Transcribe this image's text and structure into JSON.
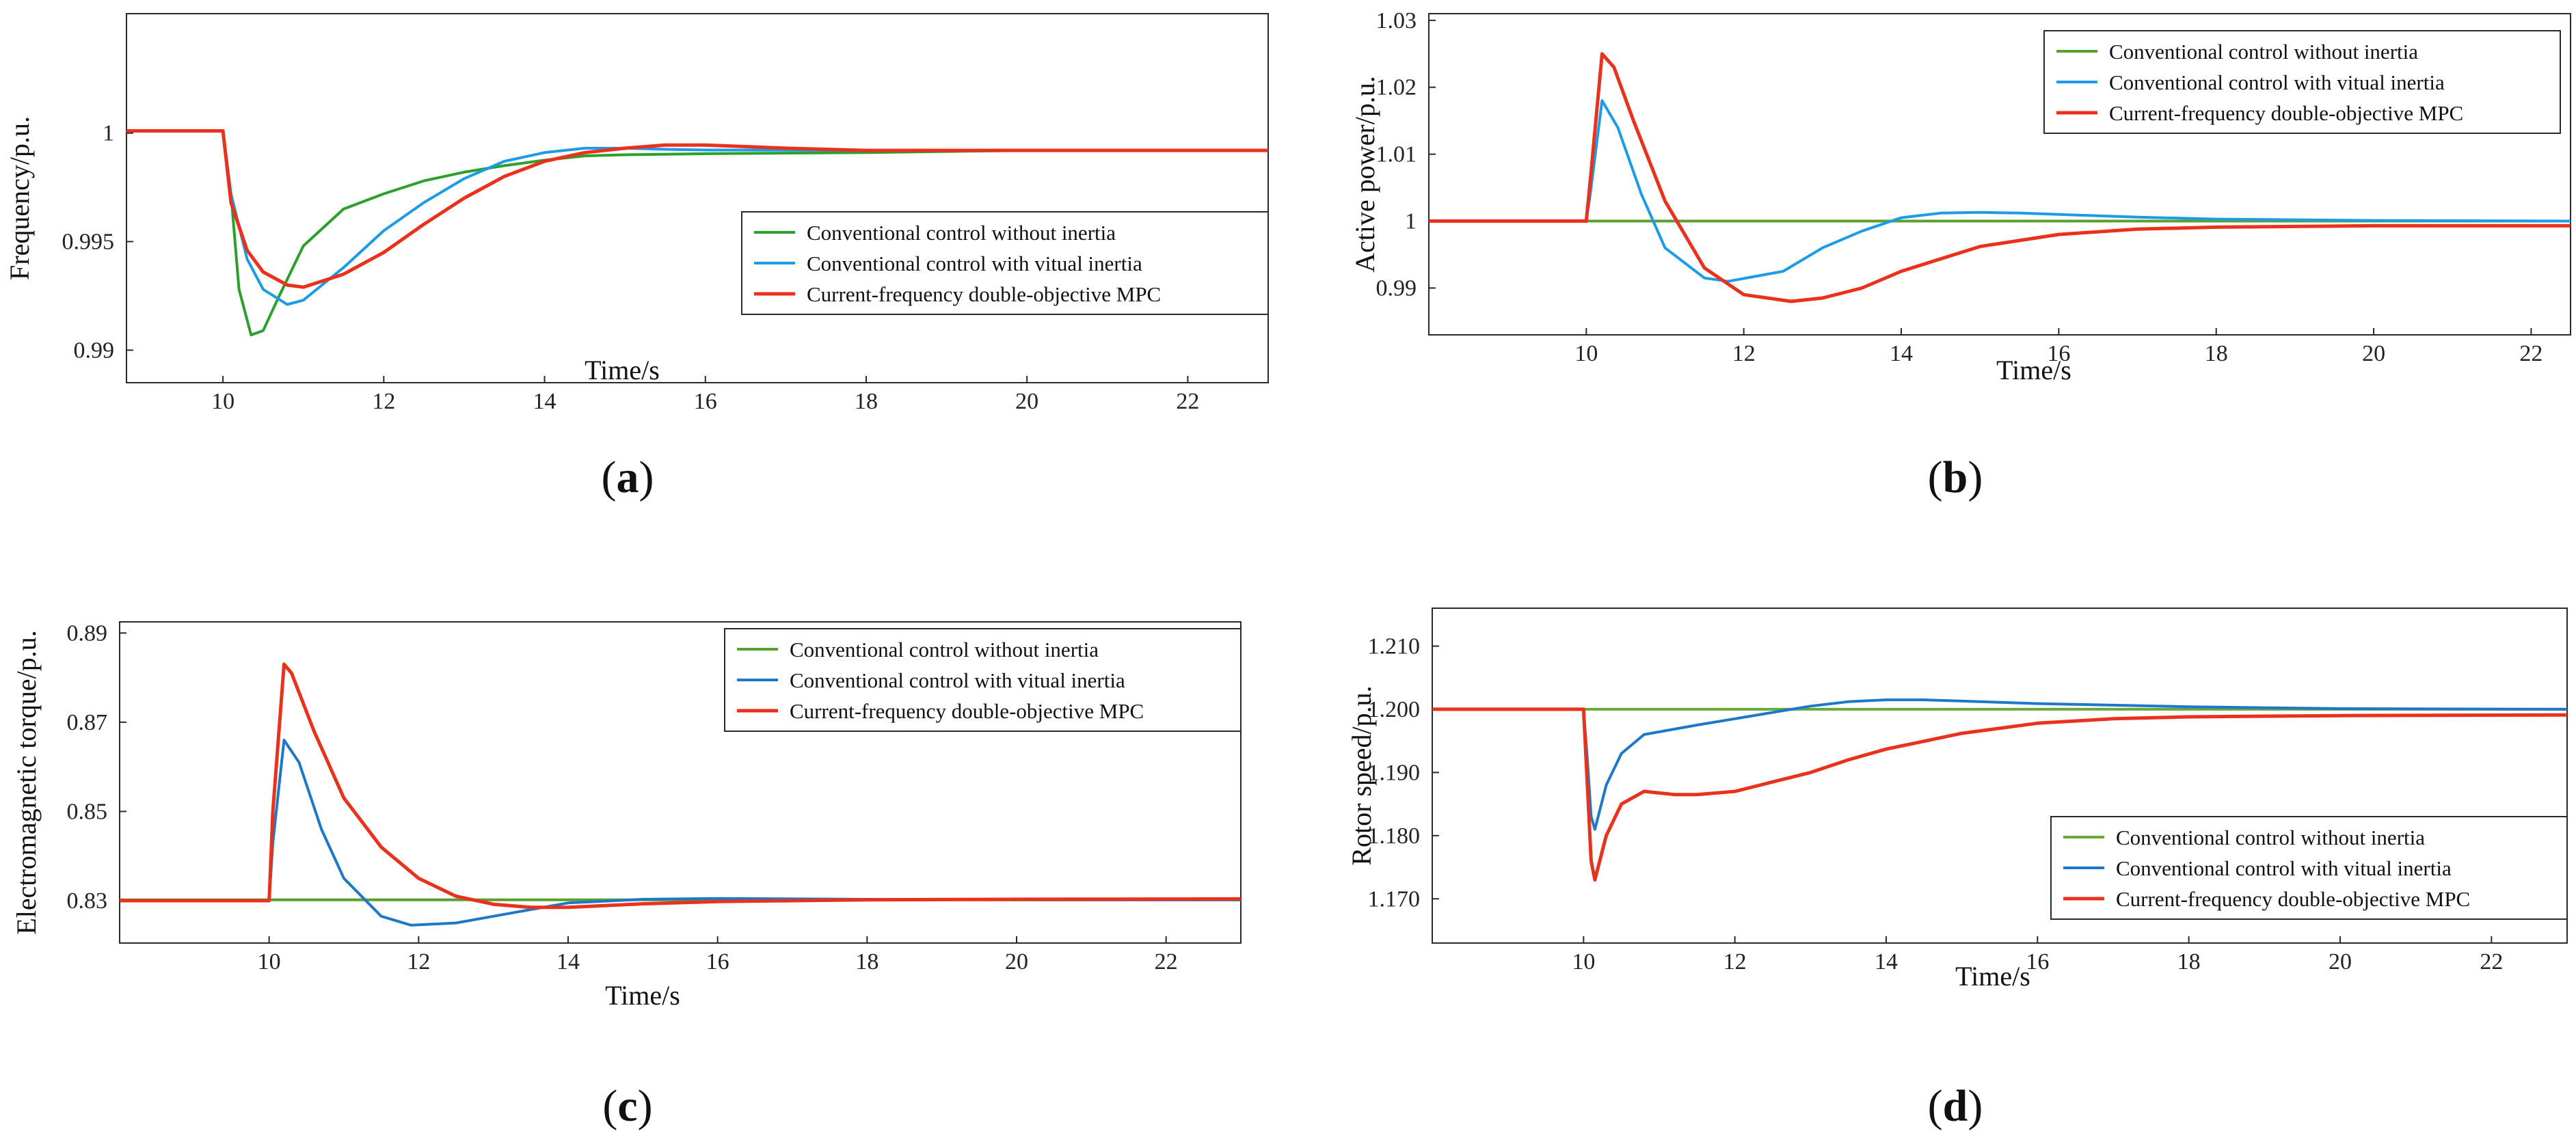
{
  "chart_data": [
    {
      "id": "a",
      "type": "line",
      "panel_label": "(a)",
      "panel_letter": "a",
      "xlabel": "Time/s",
      "ylabel": "Frequency/p.u.",
      "xlim": [
        8.8,
        23
      ],
      "ylim": [
        0.9885,
        1.0055
      ],
      "x_ticks": [
        10,
        12,
        14,
        16,
        18,
        20,
        22
      ],
      "x_tick_labels": [
        "10",
        "12",
        "14",
        "16",
        "18",
        "20",
        "22"
      ],
      "y_ticks": [
        0.99,
        0.995,
        1.0
      ],
      "y_tick_labels": [
        "0.99",
        "0.995",
        "1"
      ],
      "legend_position": "bottom-right",
      "series": [
        {
          "name": "Conventional control without inertia",
          "color": "#2ca02c",
          "x": [
            8.8,
            10.0,
            10.1,
            10.2,
            10.35,
            10.5,
            10.7,
            11.0,
            11.5,
            12.0,
            12.5,
            13.0,
            13.5,
            14.0,
            14.5,
            15.0,
            16.0,
            18.0,
            20.0,
            23.0
          ],
          "y": [
            1.0001,
            1.0001,
            0.9972,
            0.9928,
            0.9907,
            0.9909,
            0.9925,
            0.9948,
            0.9965,
            0.9972,
            0.9978,
            0.9982,
            0.9985,
            0.99875,
            0.99895,
            0.999,
            0.99905,
            0.9991,
            0.9992,
            0.9992
          ]
        },
        {
          "name": "Conventional control with vitual inertia",
          "color": "#1e9be6",
          "x": [
            8.8,
            10.0,
            10.1,
            10.3,
            10.5,
            10.8,
            11.0,
            11.5,
            12.0,
            12.5,
            13.0,
            13.5,
            14.0,
            14.5,
            15.0,
            15.5,
            16.0,
            18.0,
            20.0,
            23.0
          ],
          "y": [
            1.0001,
            1.0001,
            0.9972,
            0.9942,
            0.9928,
            0.9921,
            0.9923,
            0.9938,
            0.9955,
            0.9968,
            0.9979,
            0.9987,
            0.9991,
            0.9993,
            0.9993,
            0.99925,
            0.99922,
            0.9992,
            0.9992,
            0.9992
          ]
        },
        {
          "name": "Current-frequency double-objective MPC",
          "color": "#e8321e",
          "x": [
            8.8,
            10.0,
            10.1,
            10.3,
            10.5,
            10.8,
            11.0,
            11.5,
            12.0,
            12.5,
            13.0,
            13.5,
            14.0,
            14.5,
            15.0,
            15.5,
            16.0,
            17.0,
            18.0,
            20.0,
            23.0
          ],
          "y": [
            1.0001,
            1.0001,
            0.9968,
            0.9946,
            0.9936,
            0.993,
            0.9929,
            0.9935,
            0.9945,
            0.9958,
            0.997,
            0.998,
            0.9987,
            0.9991,
            0.9993,
            0.99945,
            0.99945,
            0.9993,
            0.9992,
            0.9992,
            0.9992
          ]
        }
      ]
    },
    {
      "id": "b",
      "type": "line",
      "panel_label": "(b)",
      "panel_letter": "b",
      "xlabel": "Time/s",
      "ylabel": "Active power/p.u.",
      "xlim": [
        8,
        22.5
      ],
      "ylim": [
        0.983,
        1.031
      ],
      "x_ticks": [
        10,
        12,
        14,
        16,
        18,
        20,
        22
      ],
      "x_tick_labels": [
        "10",
        "12",
        "14",
        "16",
        "18",
        "20",
        "22"
      ],
      "y_ticks": [
        0.99,
        1.0,
        1.01,
        1.02,
        1.03
      ],
      "y_tick_labels": [
        "0.99",
        "1",
        "1.01",
        "1.02",
        "1.03"
      ],
      "legend_position": "top-right",
      "series": [
        {
          "name": "Conventional control without inertia",
          "color": "#5aa02c",
          "x": [
            8,
            22.5
          ],
          "y": [
            1.0,
            1.0
          ]
        },
        {
          "name": "Conventional control with vitual inertia",
          "color": "#1e9be6",
          "x": [
            8,
            10.0,
            10.05,
            10.2,
            10.4,
            10.7,
            11.0,
            11.5,
            11.8,
            12.5,
            13.0,
            13.5,
            14.0,
            14.5,
            15.0,
            15.5,
            16.0,
            17.0,
            18.0,
            20.0,
            22.5
          ],
          "y": [
            1.0,
            1.0,
            1.004,
            1.018,
            1.014,
            1.004,
            0.996,
            0.9915,
            0.991,
            0.9925,
            0.996,
            0.9985,
            1.0005,
            1.0012,
            1.0013,
            1.0012,
            1.001,
            1.0006,
            1.0003,
            1.0001,
            1.0
          ]
        },
        {
          "name": "Current-frequency double-objective MPC",
          "color": "#e8321e",
          "x": [
            8,
            10.0,
            10.05,
            10.2,
            10.35,
            10.6,
            11.0,
            11.5,
            12.0,
            12.6,
            13.0,
            13.5,
            14.0,
            15.0,
            16.0,
            17.0,
            18.0,
            20.0,
            22.5
          ],
          "y": [
            1.0,
            1.0,
            1.006,
            1.025,
            1.023,
            1.015,
            1.003,
            0.993,
            0.989,
            0.988,
            0.9885,
            0.99,
            0.9925,
            0.9962,
            0.998,
            0.9988,
            0.9991,
            0.9993,
            0.9993
          ]
        }
      ]
    },
    {
      "id": "c",
      "type": "line",
      "panel_label": "(c)",
      "panel_letter": "c",
      "xlabel": "Time/s",
      "ylabel": "Electromagnetic torque/p.u.",
      "xlim": [
        8,
        23
      ],
      "ylim": [
        0.8205,
        0.8925
      ],
      "x_ticks": [
        10,
        12,
        14,
        16,
        18,
        20,
        22
      ],
      "x_tick_labels": [
        "10",
        "12",
        "14",
        "16",
        "18",
        "20",
        "22"
      ],
      "y_ticks": [
        0.83,
        0.85,
        0.87,
        0.89
      ],
      "y_tick_labels": [
        "0.83",
        "0.85",
        "0.87",
        "0.89"
      ],
      "legend_position": "top-right",
      "series": [
        {
          "name": "Conventional control without inertia",
          "color": "#5aa02c",
          "x": [
            8,
            23
          ],
          "y": [
            0.8302,
            0.8302
          ]
        },
        {
          "name": "Conventional control with vitual inertia",
          "color": "#1e78c8",
          "x": [
            8,
            10.0,
            10.05,
            10.2,
            10.4,
            10.7,
            11.0,
            11.5,
            11.9,
            12.5,
            13.0,
            13.5,
            14.0,
            15.0,
            16.0,
            18.0,
            20.0,
            23.0
          ],
          "y": [
            0.83,
            0.83,
            0.843,
            0.866,
            0.861,
            0.846,
            0.835,
            0.8265,
            0.8245,
            0.825,
            0.8265,
            0.828,
            0.8295,
            0.8303,
            0.8305,
            0.8303,
            0.8302,
            0.8302
          ]
        },
        {
          "name": "Current-frequency double-objective MPC",
          "color": "#e8321e",
          "x": [
            8,
            10.0,
            10.05,
            10.2,
            10.3,
            10.6,
            11.0,
            11.5,
            12.0,
            12.5,
            13.0,
            13.5,
            14.0,
            15.0,
            16.0,
            17.0,
            18.0,
            20.0,
            23.0
          ],
          "y": [
            0.83,
            0.83,
            0.85,
            0.883,
            0.881,
            0.868,
            0.853,
            0.842,
            0.835,
            0.831,
            0.8292,
            0.8285,
            0.8285,
            0.8293,
            0.8298,
            0.83,
            0.8302,
            0.8303,
            0.8304
          ]
        }
      ]
    },
    {
      "id": "d",
      "type": "line",
      "panel_label": "(d)",
      "panel_letter": "d",
      "xlabel": "Time/s",
      "ylabel": "Rotor speed/p.u.",
      "xlim": [
        8,
        23
      ],
      "ylim": [
        1.163,
        1.216
      ],
      "x_ticks": [
        10,
        12,
        14,
        16,
        18,
        20,
        22
      ],
      "x_tick_labels": [
        "10",
        "12",
        "14",
        "16",
        "18",
        "20",
        "22"
      ],
      "y_ticks": [
        1.17,
        1.18,
        1.19,
        1.2,
        1.21
      ],
      "y_tick_labels": [
        "1.170",
        "1.180",
        "1.190",
        "1.200",
        "1.210"
      ],
      "legend_position": "bottom-right",
      "series": [
        {
          "name": "Conventional control without inertia",
          "color": "#6aa83a",
          "x": [
            8,
            23
          ],
          "y": [
            1.2,
            1.2
          ]
        },
        {
          "name": "Conventional control with vitual inertia",
          "color": "#1e78c8",
          "x": [
            8,
            10.0,
            10.05,
            10.1,
            10.15,
            10.3,
            10.5,
            10.8,
            11.5,
            12.0,
            12.5,
            13.0,
            13.5,
            14.0,
            14.5,
            15.0,
            16.0,
            18.0,
            20.0,
            23.0
          ],
          "y": [
            1.2,
            1.2,
            1.192,
            1.183,
            1.181,
            1.188,
            1.193,
            1.196,
            1.1975,
            1.1985,
            1.1995,
            1.2005,
            1.2012,
            1.2015,
            1.2015,
            1.2013,
            1.2009,
            1.2004,
            1.2001,
            1.2
          ]
        },
        {
          "name": "Current-frequency double-objective MPC",
          "color": "#e8321e",
          "x": [
            8,
            10.0,
            10.05,
            10.1,
            10.15,
            10.3,
            10.5,
            10.8,
            11.2,
            11.5,
            12.0,
            12.5,
            13.0,
            13.5,
            14.0,
            15.0,
            16.0,
            17.0,
            18.0,
            20.0,
            23.0
          ],
          "y": [
            1.2,
            1.2,
            1.188,
            1.176,
            1.173,
            1.18,
            1.185,
            1.187,
            1.1865,
            1.1865,
            1.187,
            1.1885,
            1.19,
            1.192,
            1.1937,
            1.1962,
            1.1978,
            1.1985,
            1.1988,
            1.199,
            1.1991
          ]
        }
      ]
    }
  ]
}
